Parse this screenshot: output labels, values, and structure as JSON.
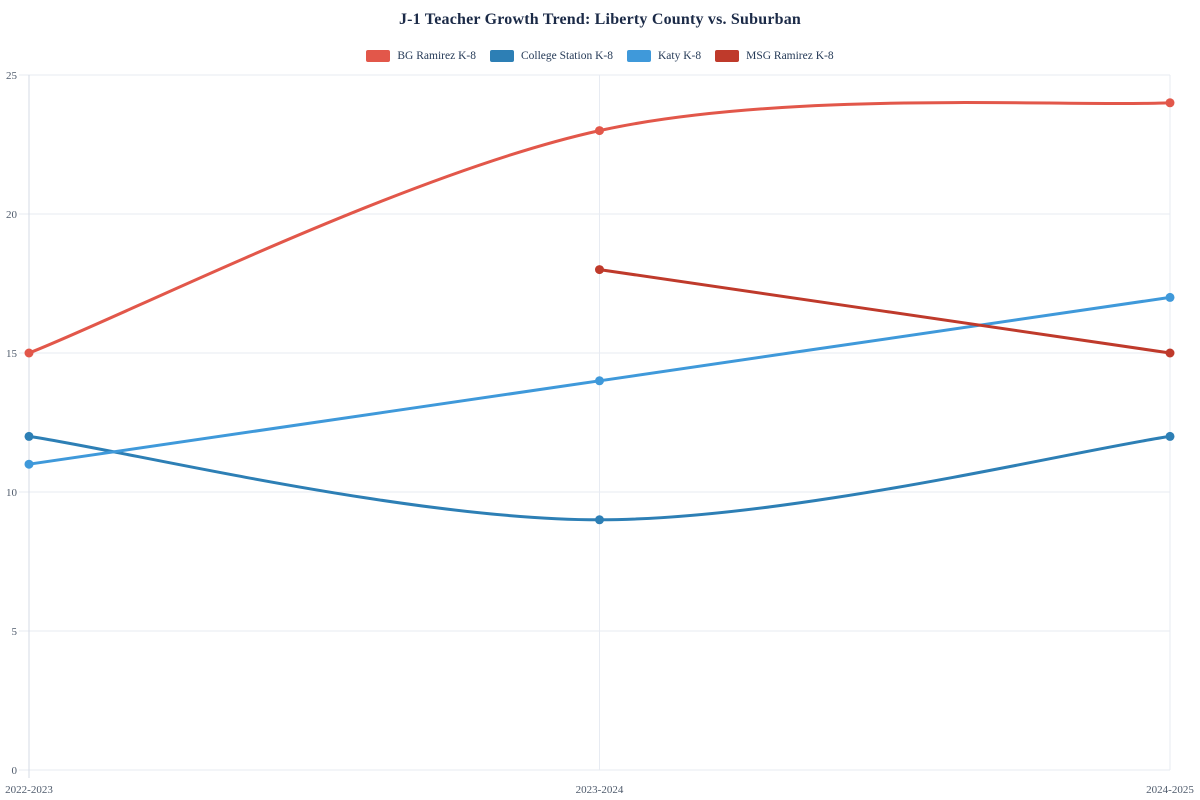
{
  "chart": {
    "title": "J-1 Teacher Growth Trend: Liberty County vs. Suburban"
  },
  "chart_data": {
    "type": "line",
    "title": "J-1 Teacher Growth Trend: Liberty County vs. Suburban",
    "categories": [
      "2022-2023",
      "2023-2024",
      "2024-2025"
    ],
    "series": [
      {
        "name": "BG Ramirez K-8",
        "color": "#e2574a",
        "values": [
          15,
          23,
          24
        ]
      },
      {
        "name": "College Station K-8",
        "color": "#2d7fb5",
        "values": [
          12,
          9,
          12
        ]
      },
      {
        "name": "Katy K-8",
        "color": "#3f99da",
        "values": [
          11,
          14,
          17
        ]
      },
      {
        "name": "MSG Ramirez K-8",
        "color": "#bf3a2b",
        "values": [
          null,
          18,
          15
        ]
      }
    ],
    "xlabel": "",
    "ylabel": "",
    "ylim": [
      0,
      25
    ],
    "yticks": [
      0,
      5,
      10,
      15,
      20,
      25
    ],
    "grid": true,
    "smooth": true,
    "legend_position": "top"
  },
  "colors": {
    "background": "#ffffff",
    "grid": "#e7ebf2",
    "axis": "#d4dbe5",
    "tick_label": "#4e5a6b",
    "title_text": "#1b2a47",
    "legend_text": "#253a57"
  }
}
